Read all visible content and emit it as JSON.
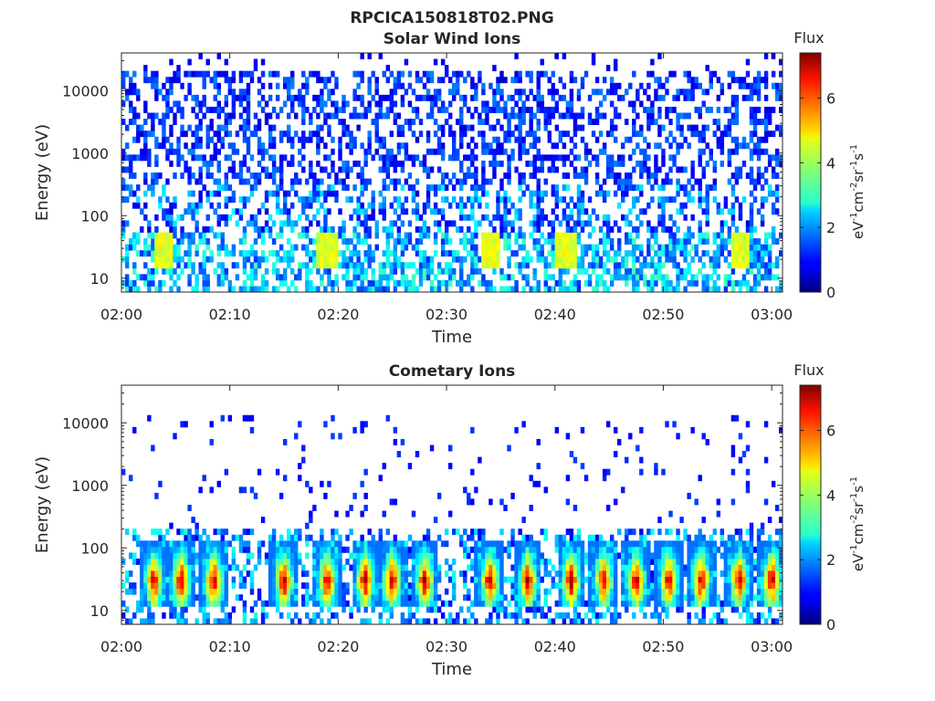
{
  "figure_title": "RPCICA150818T02.PNG",
  "chart_data": [
    {
      "type": "heatmap",
      "title": "Solar Wind Ions",
      "xlabel": "Time",
      "ylabel": "Energy (eV)",
      "x_ticks": [
        "02:00",
        "02:10",
        "02:20",
        "02:30",
        "02:40",
        "02:50",
        "03:00"
      ],
      "x_range": [
        "02:00",
        "03:01"
      ],
      "y_scale": "log",
      "y_ticks": [
        10,
        100,
        1000,
        10000
      ],
      "y_tick_labels": [
        "10",
        "100",
        "1000",
        "10000"
      ],
      "y_range": [
        6,
        40000
      ],
      "colorbar": {
        "title": "Flux",
        "label": "eV-1cm-2sr-1s-1",
        "range": [
          0,
          7.4
        ],
        "ticks": [
          0,
          2,
          4,
          6
        ],
        "colormap": "jet"
      },
      "description_values": {
        "background_level": 1,
        "low_energy_band_eV": [
          8,
          60
        ],
        "low_energy_band_level": 3,
        "peak_times": [
          "02:04",
          "02:19",
          "02:34",
          "02:41",
          "02:57"
        ],
        "peak_energy_eV": 30,
        "peak_level": 4.8
      }
    },
    {
      "type": "heatmap",
      "title": "Cometary Ions",
      "xlabel": "Time",
      "ylabel": "Energy (eV)",
      "x_ticks": [
        "02:00",
        "02:10",
        "02:20",
        "02:30",
        "02:40",
        "02:50",
        "03:00"
      ],
      "x_range": [
        "02:00",
        "03:01"
      ],
      "y_scale": "log",
      "y_ticks": [
        10,
        100,
        1000,
        10000
      ],
      "y_tick_labels": [
        "10",
        "100",
        "1000",
        "10000"
      ],
      "y_range": [
        6,
        40000
      ],
      "colorbar": {
        "title": "Flux",
        "label": "eV-1cm-2sr-1s-1",
        "range": [
          0,
          7.4
        ],
        "ticks": [
          0,
          2,
          4,
          6
        ],
        "colormap": "jet"
      },
      "description_values": {
        "background_level": 1,
        "low_energy_band_eV": [
          10,
          200
        ],
        "burst_times": [
          "02:03",
          "02:05.5",
          "02:08.5",
          "02:15",
          "02:19",
          "02:22.5",
          "02:25",
          "02:28",
          "02:34",
          "02:37.5",
          "02:41.5",
          "02:44.5",
          "02:47.5",
          "02:50.5",
          "02:53.5",
          "02:57",
          "03:00"
        ],
        "burst_energy_eV": 30,
        "burst_peak_level": 7
      }
    }
  ]
}
